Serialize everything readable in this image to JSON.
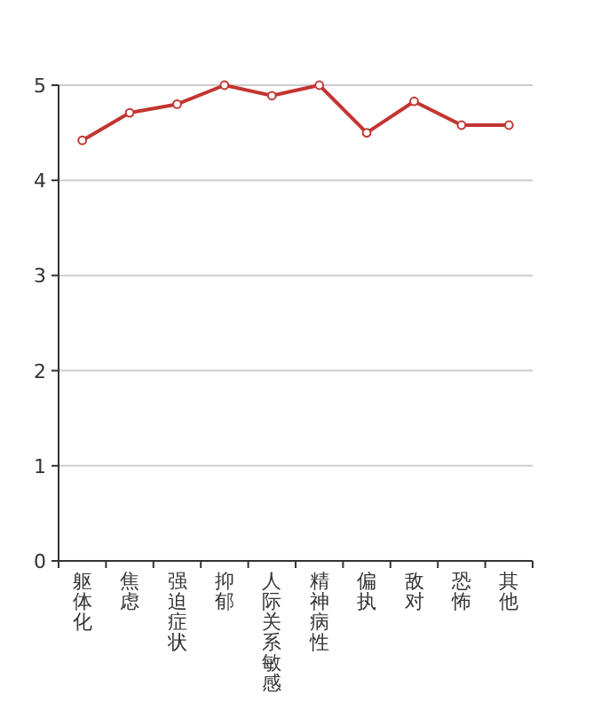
{
  "chart_data": {
    "type": "line",
    "categories": [
      "躯体化",
      "焦虑",
      "强迫症状",
      "抑郁",
      "人际关系敏感",
      "精神病性",
      "偏执",
      "敌对",
      "恐怖",
      "其他"
    ],
    "series": [
      {
        "color": "#c23531",
        "values": [
          4.42,
          4.71,
          4.8,
          5.0,
          4.89,
          5.0,
          4.5,
          4.83,
          4.58,
          4.58
        ]
      }
    ],
    "ylim": [
      0,
      5
    ],
    "yticks": [
      0,
      1,
      2,
      3,
      4,
      5
    ],
    "grid": "y",
    "marker": "circle",
    "line_style": "solid"
  }
}
